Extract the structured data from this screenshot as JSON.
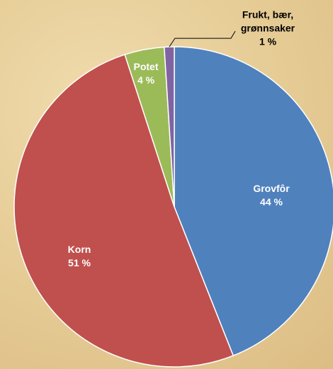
{
  "chart_data": {
    "type": "pie",
    "categories": [
      "Grovfôr",
      "Korn",
      "Potet",
      "Frukt, bær, grønnsaker"
    ],
    "values": [
      44,
      51,
      4,
      1
    ],
    "value_labels": [
      "44 %",
      "51 %",
      "4 %",
      "1 %"
    ],
    "colors": [
      "#4f81bd",
      "#c0504d",
      "#9bbb59",
      "#8064a2"
    ]
  }
}
